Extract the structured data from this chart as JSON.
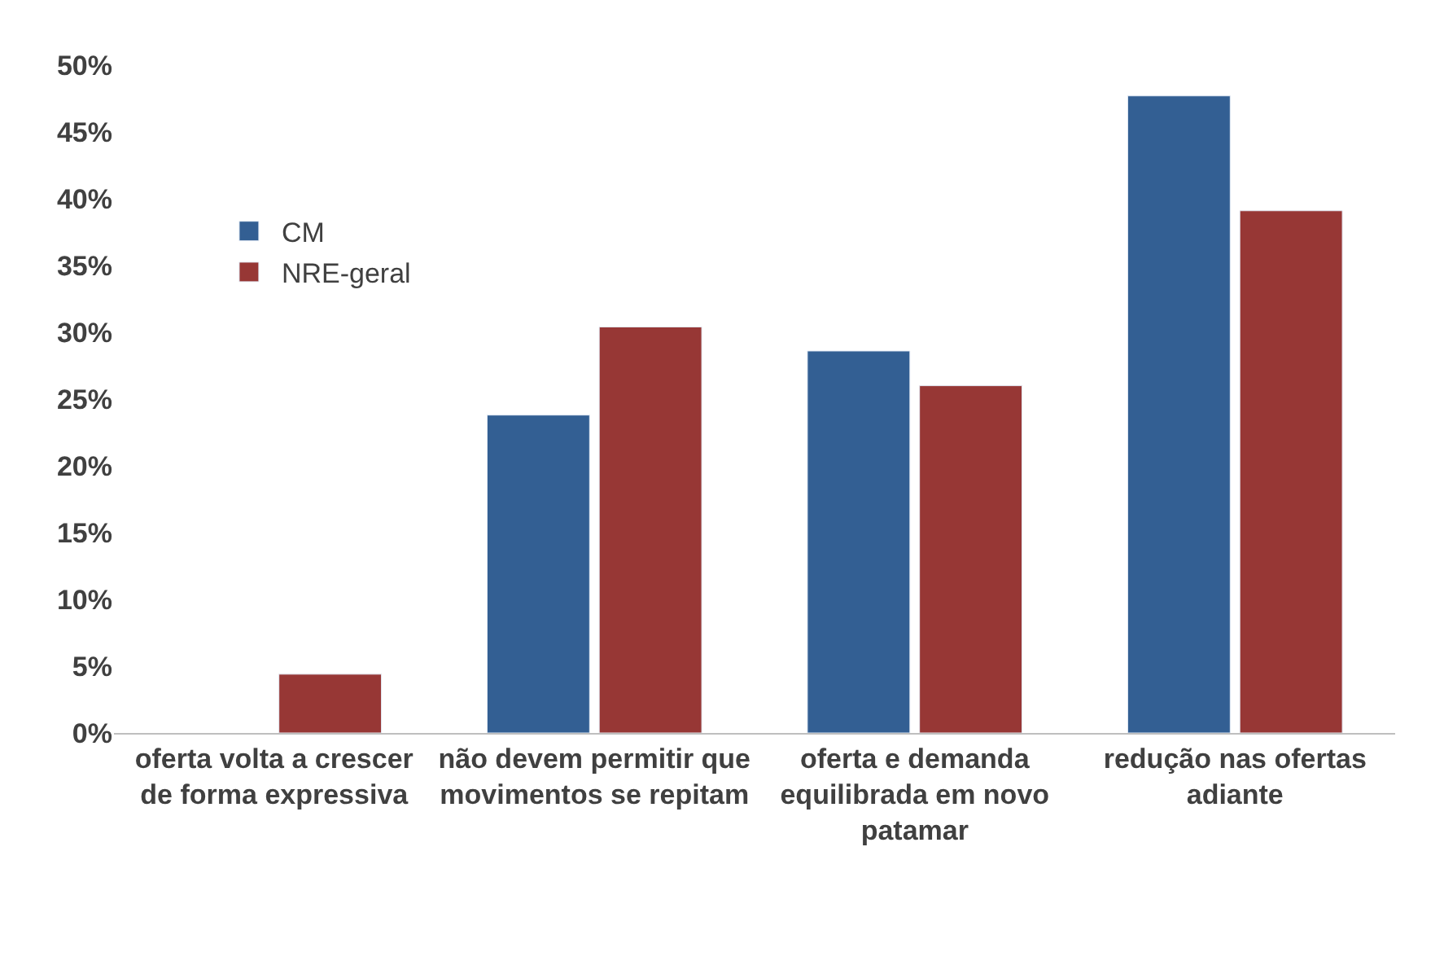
{
  "chart_data": {
    "type": "bar",
    "categories": [
      "oferta volta a crescer de forma expressiva",
      "não devem permitir que movimentos se repitam",
      "oferta e demanda equilibrada em novo patamar",
      "redução nas ofertas adiante"
    ],
    "series": [
      {
        "name": "CM",
        "color": "#335f93",
        "values": [
          null,
          23.8,
          28.6,
          47.7
        ]
      },
      {
        "name": "NRE-geral",
        "color": "#973735",
        "values": [
          4.4,
          30.4,
          26.0,
          39.1
        ]
      }
    ],
    "ylim": [
      0,
      50
    ],
    "yticks": [
      {
        "value": 0,
        "label": "0%"
      },
      {
        "value": 5,
        "label": "5%"
      },
      {
        "value": 10,
        "label": "10%"
      },
      {
        "value": 15,
        "label": "15%"
      },
      {
        "value": 20,
        "label": "20%"
      },
      {
        "value": 25,
        "label": "25%"
      },
      {
        "value": 30,
        "label": "30%"
      },
      {
        "value": 35,
        "label": "35%"
      },
      {
        "value": 40,
        "label": "40%"
      },
      {
        "value": 45,
        "label": "45%"
      },
      {
        "value": 50,
        "label": "50%"
      }
    ],
    "grid": false,
    "legend": "left"
  }
}
